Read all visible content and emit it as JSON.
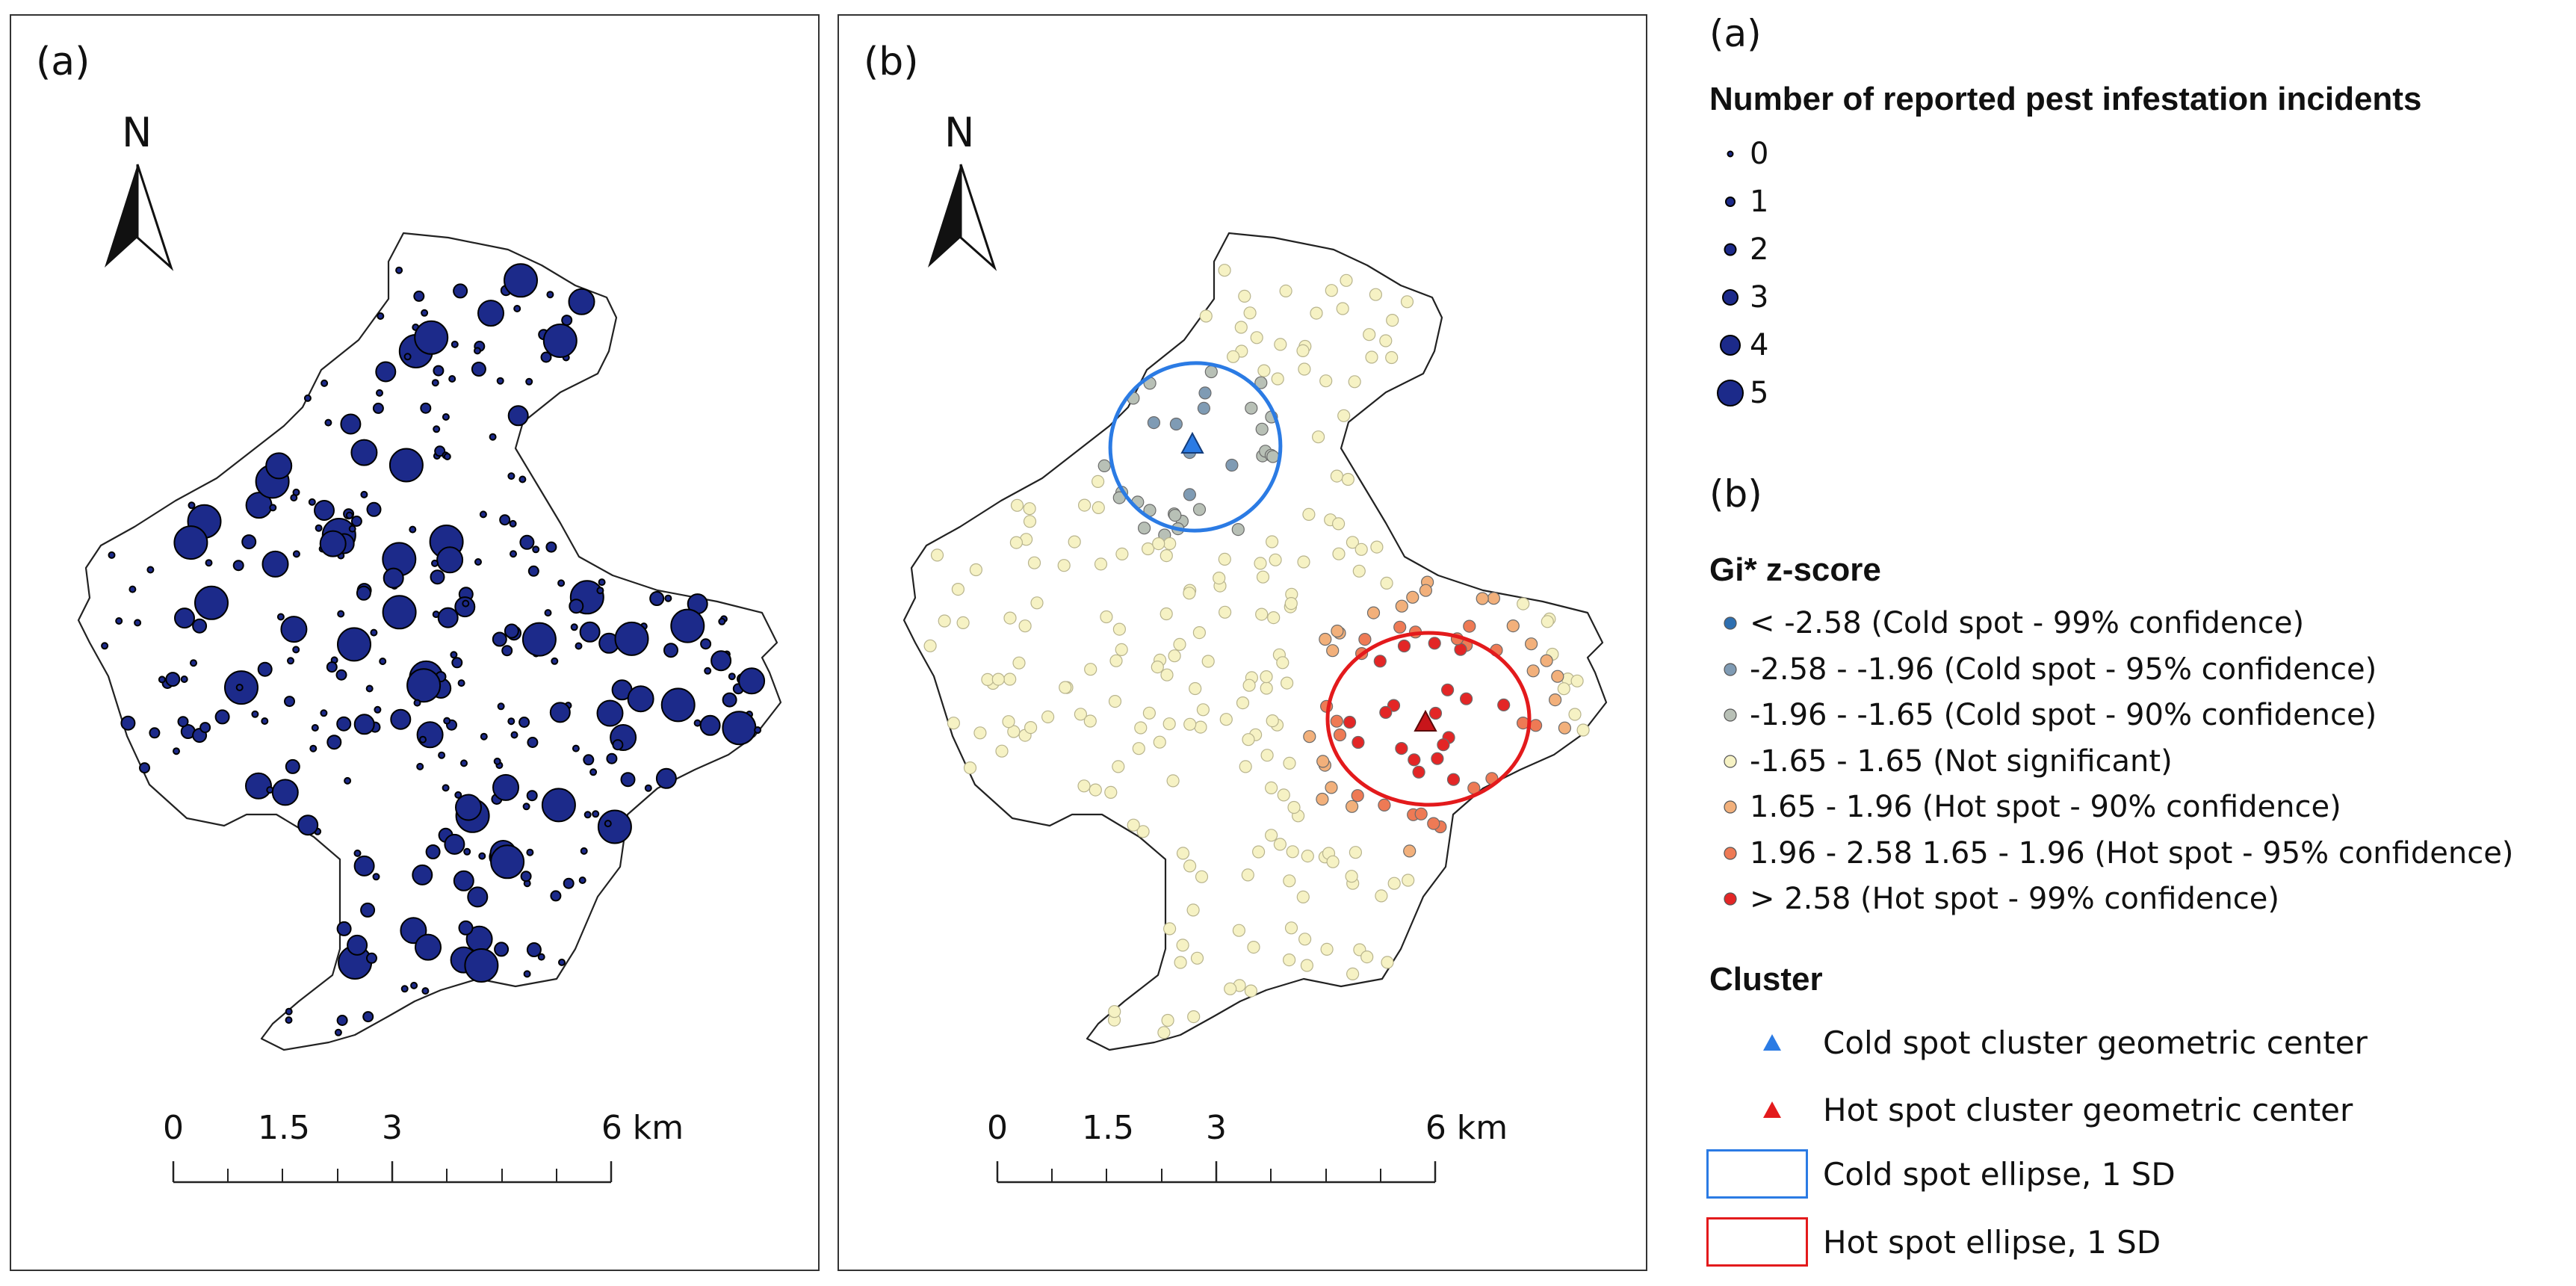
{
  "panels": [
    {
      "label": "(a)",
      "north": "N",
      "scale": {
        "ticks": [
          "0",
          "1.5",
          "3",
          "6 km"
        ]
      }
    },
    {
      "label": "(b)",
      "north": "N",
      "scale": {
        "ticks": [
          "0",
          "1.5",
          "3",
          "6 km"
        ]
      }
    }
  ],
  "legend": {
    "a": {
      "heading": "(a)",
      "title": "Number of reported pest infestation incidents",
      "items": [
        {
          "label": "0",
          "count": 0
        },
        {
          "label": "1",
          "count": 1
        },
        {
          "label": "2",
          "count": 2
        },
        {
          "label": "3",
          "count": 3
        },
        {
          "label": "4",
          "count": 4
        },
        {
          "label": "5",
          "count": 5
        }
      ],
      "marker_color": "#1c2a8a"
    },
    "b": {
      "heading": "(b)",
      "title": "Gi* z-score",
      "items": [
        {
          "label": "< -2.58 (Cold spot - 99% confidence)",
          "color": "#2e6fb0"
        },
        {
          "label": "-2.58 - -1.96 (Cold spot - 95% confidence)",
          "color": "#7f9bb4"
        },
        {
          "label": "-1.96 - -1.65 (Cold spot - 90% confidence)",
          "color": "#b8c0b6"
        },
        {
          "label": "-1.65 - 1.65 (Not significant)",
          "color": "#f6f2c4"
        },
        {
          "label": "1.65 - 1.96 (Hot spot - 90% confidence)",
          "color": "#f2b07b"
        },
        {
          "label": "1.96 - 2.58 1.65 - 1.96 (Hot spot - 95% confidence)",
          "color": "#ee7a55"
        },
        {
          "label": "> 2.58 (Hot spot - 99% confidence)",
          "color": "#e32626"
        }
      ]
    },
    "cluster": {
      "title": "Cluster",
      "items": [
        {
          "label": "Cold spot cluster geometric center",
          "symbol": "triangle",
          "color": "#2b7be4"
        },
        {
          "label": "Hot spot cluster geometric center",
          "symbol": "triangle",
          "color": "#e31a1c"
        },
        {
          "label": "Cold spot ellipse, 1 SD",
          "symbol": "box",
          "color": "#2b7be4"
        },
        {
          "label": "Hot spot ellipse, 1 SD",
          "symbol": "box",
          "color": "#e31a1c"
        }
      ]
    }
  }
}
